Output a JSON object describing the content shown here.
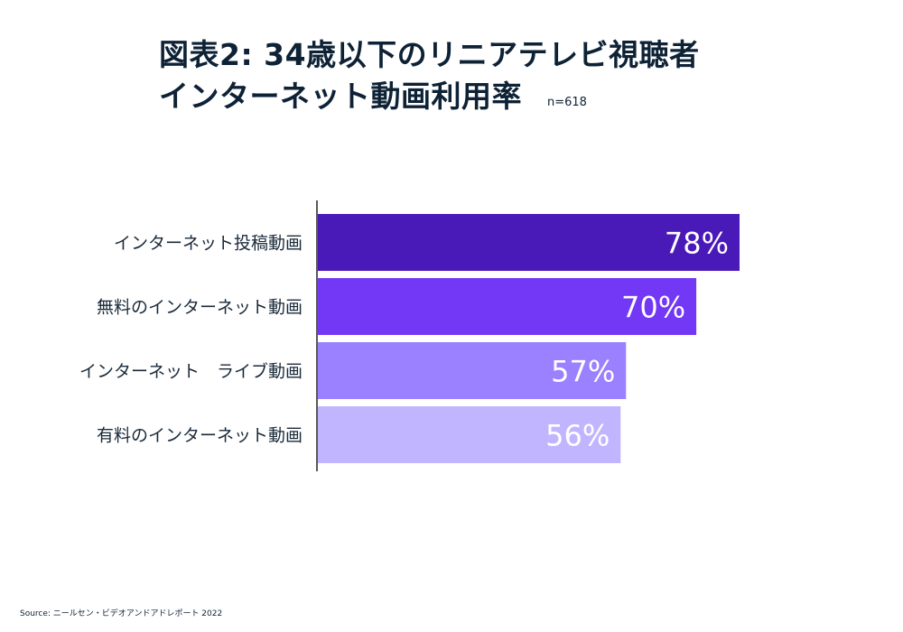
{
  "title": {
    "line1": "図表2: 34歳以下のリニアテレビ視聴者",
    "line2": "インターネット動画利用率"
  },
  "sample_size": "n=618",
  "source": "Source: ニールセン・ビデオアンドアドレポート 2022",
  "chart_data": {
    "type": "bar",
    "orientation": "horizontal",
    "categories": [
      "インターネット投稿動画",
      "無料のインターネット動画",
      "インターネット　ライブ動画",
      "有料のインターネット動画"
    ],
    "values": [
      78,
      70,
      57,
      56
    ],
    "value_labels": [
      "78%",
      "70%",
      "57%",
      "56%"
    ],
    "colors": [
      "#4a1ab8",
      "#7338f5",
      "#9b80ff",
      "#c2b5ff"
    ],
    "axis_color": "#222222",
    "xlim": [
      0,
      100
    ],
    "grid": false,
    "legend": "none"
  }
}
